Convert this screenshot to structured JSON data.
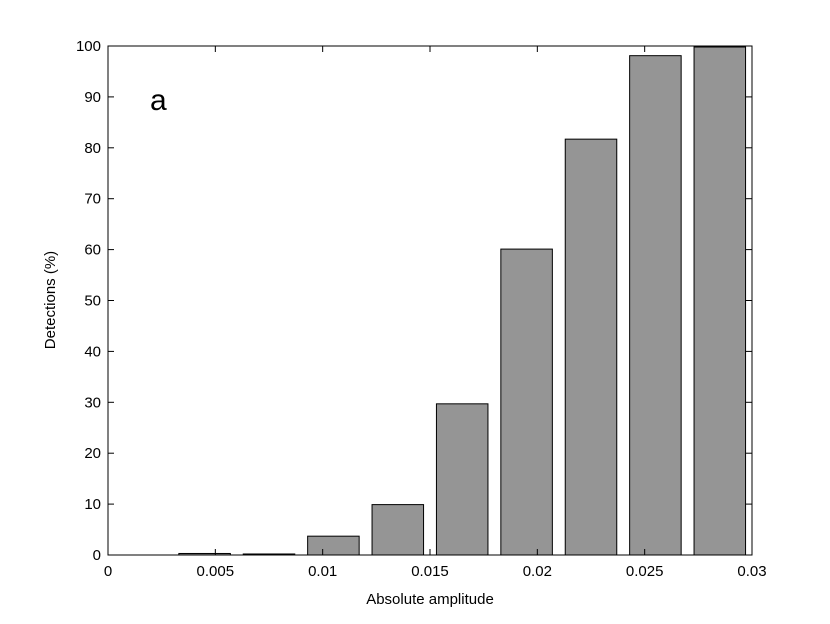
{
  "chart_data": {
    "type": "bar",
    "annotation": "a",
    "x_label": "Absolute amplitude",
    "y_label": "Detections (%)",
    "x": [
      0.0015,
      0.0045,
      0.0075,
      0.0105,
      0.0135,
      0.0165,
      0.0195,
      0.0225,
      0.0255,
      0.0285
    ],
    "values": [
      0,
      0.3,
      0.2,
      3.7,
      9.9,
      29.7,
      60.1,
      81.7,
      98.1,
      99.8
    ],
    "color": "#959595",
    "xlim": [
      0,
      0.03
    ],
    "xticks": [
      0,
      0.005,
      0.01,
      0.015,
      0.02,
      0.025,
      0.03
    ],
    "ylim": [
      0,
      100
    ],
    "yticks": [
      0,
      10,
      20,
      30,
      40,
      50,
      60,
      70,
      80,
      90,
      100
    ]
  }
}
